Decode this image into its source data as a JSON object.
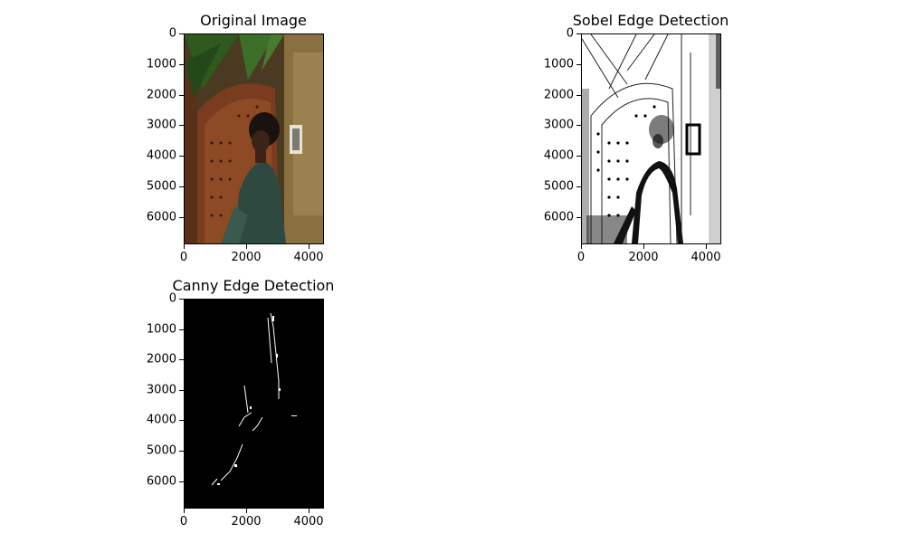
{
  "chart_data": [
    {
      "type": "image",
      "title": "Original Image",
      "xticks": [
        0,
        2000,
        4000
      ],
      "yticks": [
        0,
        1000,
        2000,
        3000,
        4000,
        5000,
        6000
      ],
      "colors": {
        "background": "#4a3a22",
        "door": "#7a3c1e",
        "wall": "#8a7040",
        "leaves": "#2e5a1e",
        "coat": "#2e4a40",
        "hair": "#1a120c"
      }
    },
    {
      "type": "image",
      "title": "Sobel Edge Detection",
      "xticks": [
        0,
        2000,
        4000
      ],
      "yticks": [
        0,
        1000,
        2000,
        3000,
        4000,
        5000,
        6000
      ],
      "colors": {
        "background": "#ffffff",
        "edges": "#111111"
      }
    },
    {
      "type": "image",
      "title": "Canny Edge Detection",
      "xticks": [
        0,
        2000,
        4000
      ],
      "yticks": [
        0,
        1000,
        2000,
        3000,
        4000,
        5000,
        6000
      ],
      "colors": {
        "background": "#000000",
        "edges": "#ffffff"
      }
    }
  ]
}
